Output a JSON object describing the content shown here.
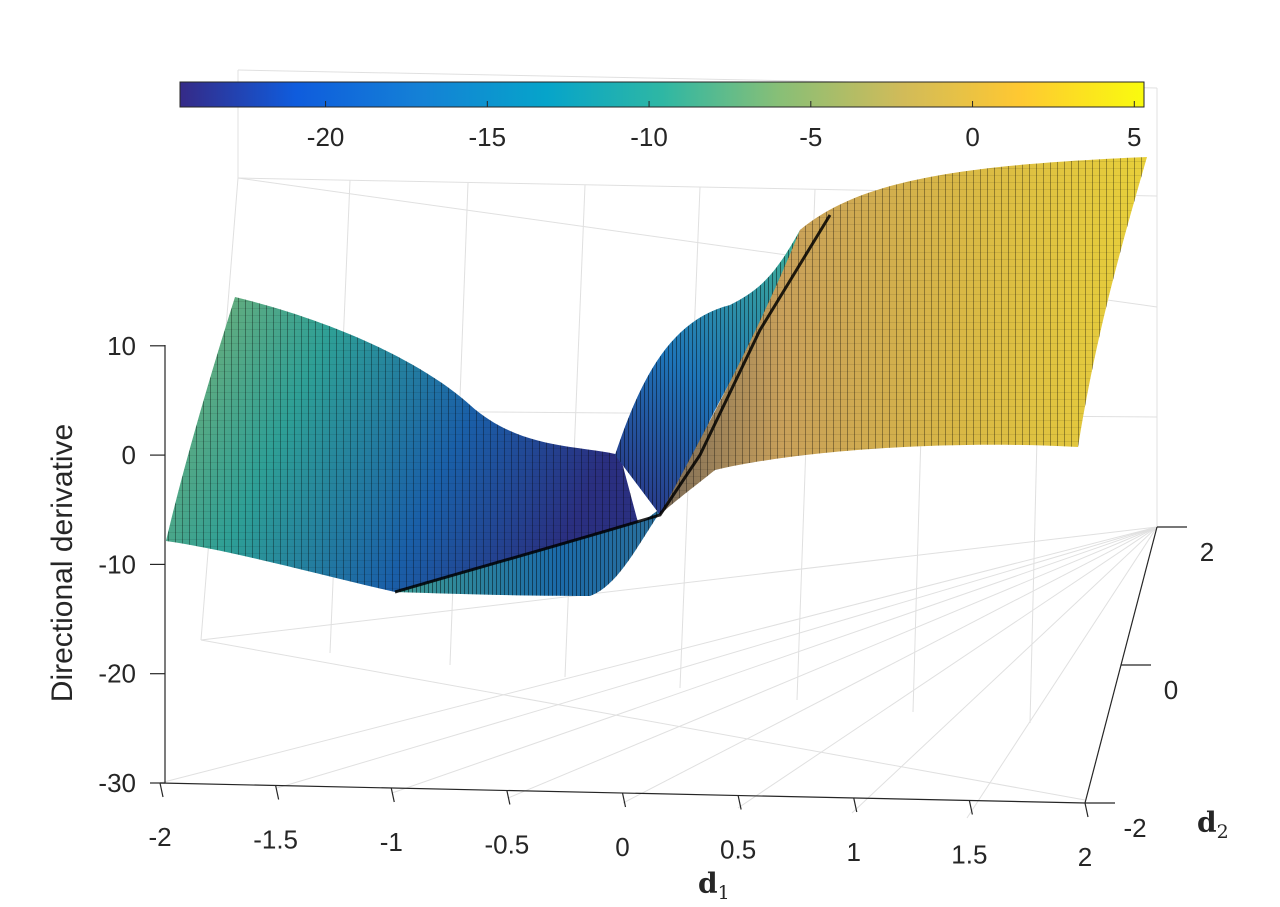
{
  "chart_data": {
    "type": "surface",
    "title": "",
    "xlabel": "d",
    "xlabel_subscript": "1",
    "ylabel": "d",
    "ylabel_subscript": "2",
    "zlabel": "Directional derivative",
    "xlim": [
      -2,
      2
    ],
    "ylim": [
      -2,
      2
    ],
    "zlim": [
      -30,
      15
    ],
    "x_ticks": [
      "-2",
      "-1.5",
      "-1",
      "-0.5",
      "0",
      "0.5",
      "1",
      "1.5",
      "2"
    ],
    "y_ticks": [
      "-2",
      "0",
      "2"
    ],
    "z_ticks": [
      "-30",
      "-20",
      "-10",
      "0",
      "10"
    ],
    "colorbar": {
      "location": "north",
      "colormap": "parula",
      "range": [
        -24.5,
        5.3
      ],
      "ticks": [
        "-20",
        "-15",
        "-10",
        "-5",
        "0",
        "5"
      ]
    },
    "surface_samples": {
      "d1": [
        -2,
        -1,
        0,
        1,
        2
      ],
      "d2_at_-2": [
        -8,
        -13,
        -8,
        0,
        1
      ],
      "d2_at_0": [
        -5,
        -10,
        -8,
        5,
        5
      ],
      "d2_at_2": [
        10,
        2,
        -1,
        12,
        14
      ]
    },
    "grid": true,
    "mesh_edges": "black"
  }
}
